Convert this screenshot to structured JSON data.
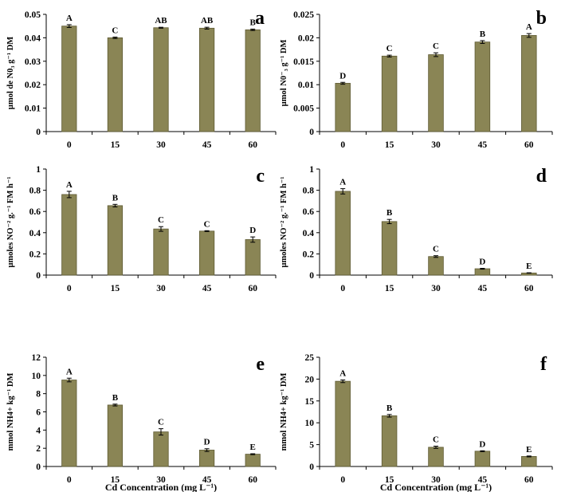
{
  "chart_data": [
    {
      "panel": "a",
      "type": "bar",
      "categories": [
        "0",
        "15",
        "30",
        "45",
        "60"
      ],
      "values": [
        0.045,
        0.04,
        0.0443,
        0.0441,
        0.0434
      ],
      "errors": [
        0.0006,
        0.0003,
        0.0002,
        0.0004,
        0.0003
      ],
      "letters": [
        "A",
        "C",
        "AB",
        "AB",
        "B"
      ],
      "ylim": [
        0,
        0.05
      ],
      "yticks": [
        "0",
        "0.01",
        "0.02",
        "0.03",
        "0.04",
        "0.05"
      ],
      "ylabel": "µmol de N0₃ g⁻¹ DM",
      "xlabel": ""
    },
    {
      "panel": "b",
      "type": "bar",
      "categories": [
        "0",
        "15",
        "30",
        "45",
        "60"
      ],
      "values": [
        0.0103,
        0.0161,
        0.0164,
        0.0191,
        0.0205
      ],
      "errors": [
        0.0002,
        0.0002,
        0.0004,
        0.0003,
        0.0004
      ],
      "letters": [
        "D",
        "C",
        "C",
        "B",
        "A"
      ],
      "ylim": [
        0,
        0.025
      ],
      "yticks": [
        "0",
        "0.005",
        "0.01",
        "0.015",
        "0.02",
        "0.025"
      ],
      "ylabel": "µmol  N0⁻₃ g⁻¹ DM",
      "xlabel": ""
    },
    {
      "panel": "c",
      "type": "bar",
      "categories": [
        "0",
        "15",
        "30",
        "45",
        "60"
      ],
      "values": [
        0.76,
        0.655,
        0.435,
        0.415,
        0.335
      ],
      "errors": [
        0.03,
        0.012,
        0.022,
        0.004,
        0.025
      ],
      "letters": [
        "A",
        "B",
        "C",
        "C",
        "D"
      ],
      "ylim": [
        0,
        1
      ],
      "yticks": [
        "0",
        "0.2",
        "0.4",
        "0.6",
        "0.8",
        "1"
      ],
      "ylabel": "µmoles NO⁻² g.⁻¹ FM h⁻¹",
      "xlabel": ""
    },
    {
      "panel": "d",
      "type": "bar",
      "categories": [
        "0",
        "15",
        "30",
        "45",
        "60"
      ],
      "values": [
        0.79,
        0.505,
        0.175,
        0.06,
        0.02
      ],
      "errors": [
        0.025,
        0.02,
        0.008,
        0.004,
        0.002
      ],
      "letters": [
        "A",
        "B",
        "C",
        "D",
        "E"
      ],
      "ylim": [
        0,
        1
      ],
      "yticks": [
        "0",
        "0.2",
        "0.4",
        "0.6",
        "0.8",
        "1"
      ],
      "ylabel": "µmoles NO⁻² g.⁻¹ FM h⁻¹",
      "xlabel": ""
    },
    {
      "panel": "e",
      "type": "bar",
      "categories": [
        "0",
        "15",
        "30",
        "45",
        "60"
      ],
      "values": [
        9.5,
        6.75,
        3.8,
        1.8,
        1.35
      ],
      "errors": [
        0.2,
        0.1,
        0.35,
        0.15,
        0.05
      ],
      "letters": [
        "A",
        "B",
        "C",
        "D",
        "E"
      ],
      "ylim": [
        0,
        12
      ],
      "yticks": [
        "0",
        "2",
        "4",
        "6",
        "8",
        "10",
        "12"
      ],
      "ylabel": "mmol NH4+ kg⁻¹ DM",
      "xlabel": "Cd Concentration  (mg L⁻¹)"
    },
    {
      "panel": "f",
      "type": "bar",
      "categories": [
        "0",
        "15",
        "30",
        "45",
        "60"
      ],
      "values": [
        19.5,
        11.6,
        4.4,
        3.5,
        2.3
      ],
      "errors": [
        0.3,
        0.3,
        0.25,
        0.1,
        0.1
      ],
      "letters": [
        "A",
        "B",
        "C",
        "D",
        "E"
      ],
      "ylim": [
        0,
        25
      ],
      "yticks": [
        "0",
        "5",
        "10",
        "15",
        "20",
        "25"
      ],
      "ylabel": "mmol NH4+ kg⁻¹ DM",
      "xlabel": "Cd Concentration  (mg L⁻¹)"
    }
  ],
  "colors": {
    "bar_fill": "#8a8555",
    "bar_stroke": "#5e5a33",
    "axis": "#000000"
  }
}
